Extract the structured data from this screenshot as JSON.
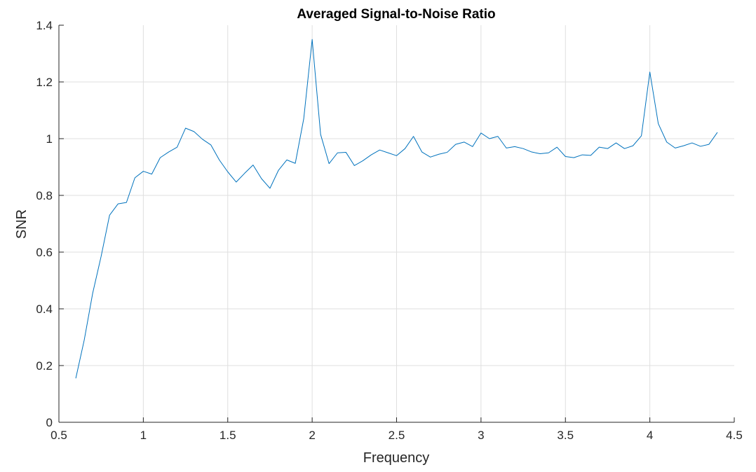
{
  "chart_data": {
    "type": "line",
    "title": "Averaged Signal-to-Noise Ratio",
    "xlabel": "Frequency",
    "ylabel": "SNR",
    "xlim": [
      0.5,
      4.5
    ],
    "ylim": [
      0,
      1.4
    ],
    "xticks": [
      0.5,
      1,
      1.5,
      2,
      2.5,
      3,
      3.5,
      4,
      4.5
    ],
    "xtick_labels": [
      "0.5",
      "1",
      "1.5",
      "2",
      "2.5",
      "3",
      "3.5",
      "4",
      "4.5"
    ],
    "yticks": [
      0,
      0.2,
      0.4,
      0.6,
      0.8,
      1,
      1.2,
      1.4
    ],
    "ytick_labels": [
      "0",
      "0.2",
      "0.4",
      "0.6",
      "0.8",
      "1",
      "1.2",
      "1.4"
    ],
    "grid": true,
    "color": "#0072BD",
    "series": [
      {
        "x": [
          0.6,
          0.65,
          0.7,
          0.75,
          0.8,
          0.85,
          0.9,
          0.95,
          1.0,
          1.05,
          1.1,
          1.15,
          1.2,
          1.25,
          1.3,
          1.35,
          1.4,
          1.45,
          1.5,
          1.55,
          1.6,
          1.65,
          1.7,
          1.75,
          1.8,
          1.85,
          1.9,
          1.95,
          2.0,
          2.05,
          2.1,
          2.15,
          2.2,
          2.25,
          2.3,
          2.35,
          2.4,
          2.45,
          2.5,
          2.55,
          2.6,
          2.65,
          2.7,
          2.75,
          2.8,
          2.85,
          2.9,
          2.95,
          3.0,
          3.05,
          3.1,
          3.15,
          3.2,
          3.25,
          3.3,
          3.35,
          3.4,
          3.45,
          3.5,
          3.55,
          3.6,
          3.65,
          3.7,
          3.75,
          3.8,
          3.85,
          3.9,
          3.95,
          4.0,
          4.05,
          4.1,
          4.15,
          4.2,
          4.25,
          4.3,
          4.35,
          4.4
        ],
        "values": [
          0.155,
          0.29,
          0.455,
          0.585,
          0.73,
          0.77,
          0.775,
          0.862,
          0.885,
          0.875,
          0.933,
          0.953,
          0.97,
          1.037,
          1.025,
          0.998,
          0.978,
          0.925,
          0.883,
          0.847,
          0.878,
          0.907,
          0.859,
          0.825,
          0.888,
          0.925,
          0.913,
          1.07,
          1.35,
          1.015,
          0.912,
          0.95,
          0.952,
          0.905,
          0.922,
          0.943,
          0.96,
          0.95,
          0.94,
          0.965,
          1.008,
          0.953,
          0.935,
          0.945,
          0.952,
          0.98,
          0.988,
          0.972,
          1.02,
          1.0,
          1.008,
          0.967,
          0.972,
          0.965,
          0.953,
          0.947,
          0.95,
          0.97,
          0.937,
          0.933,
          0.943,
          0.941,
          0.97,
          0.965,
          0.985,
          0.965,
          0.975,
          1.01,
          1.235,
          1.053,
          0.988,
          0.967,
          0.975,
          0.985,
          0.973,
          0.98,
          1.022
        ]
      }
    ]
  }
}
